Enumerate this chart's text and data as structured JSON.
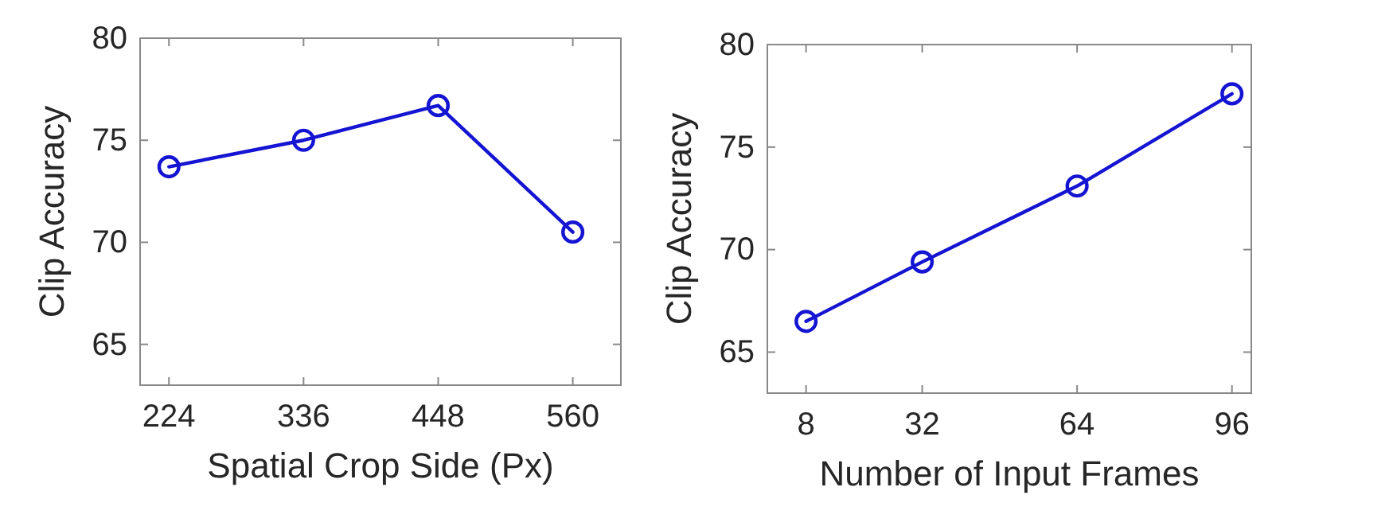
{
  "chart_data": [
    {
      "type": "line",
      "xlabel": "Spatial Crop Side (Px)",
      "ylabel": "Clip Accuracy",
      "x": [
        224,
        336,
        448,
        560
      ],
      "series": [
        {
          "color": "#1414d2",
          "values": [
            73.7,
            75.0,
            76.7,
            70.5
          ]
        }
      ],
      "xlim": [
        200,
        600
      ],
      "xticks": [
        224,
        336,
        448,
        560
      ],
      "ylim": [
        63,
        80
      ],
      "yticks": [
        65,
        70,
        75,
        80
      ],
      "marker": "circle",
      "line_style": "solid"
    },
    {
      "type": "line",
      "xlabel": "Number of Input Frames",
      "ylabel": "Clip Accuracy",
      "x": [
        8,
        32,
        64,
        96
      ],
      "series": [
        {
          "color": "#1414d2",
          "values": [
            66.5,
            69.4,
            73.1,
            77.6
          ]
        }
      ],
      "xlim": [
        0,
        100
      ],
      "xticks": [
        8,
        32,
        64,
        96
      ],
      "ylim": [
        63,
        80
      ],
      "yticks": [
        65,
        70,
        75,
        80
      ],
      "marker": "circle",
      "line_style": "solid"
    }
  ]
}
